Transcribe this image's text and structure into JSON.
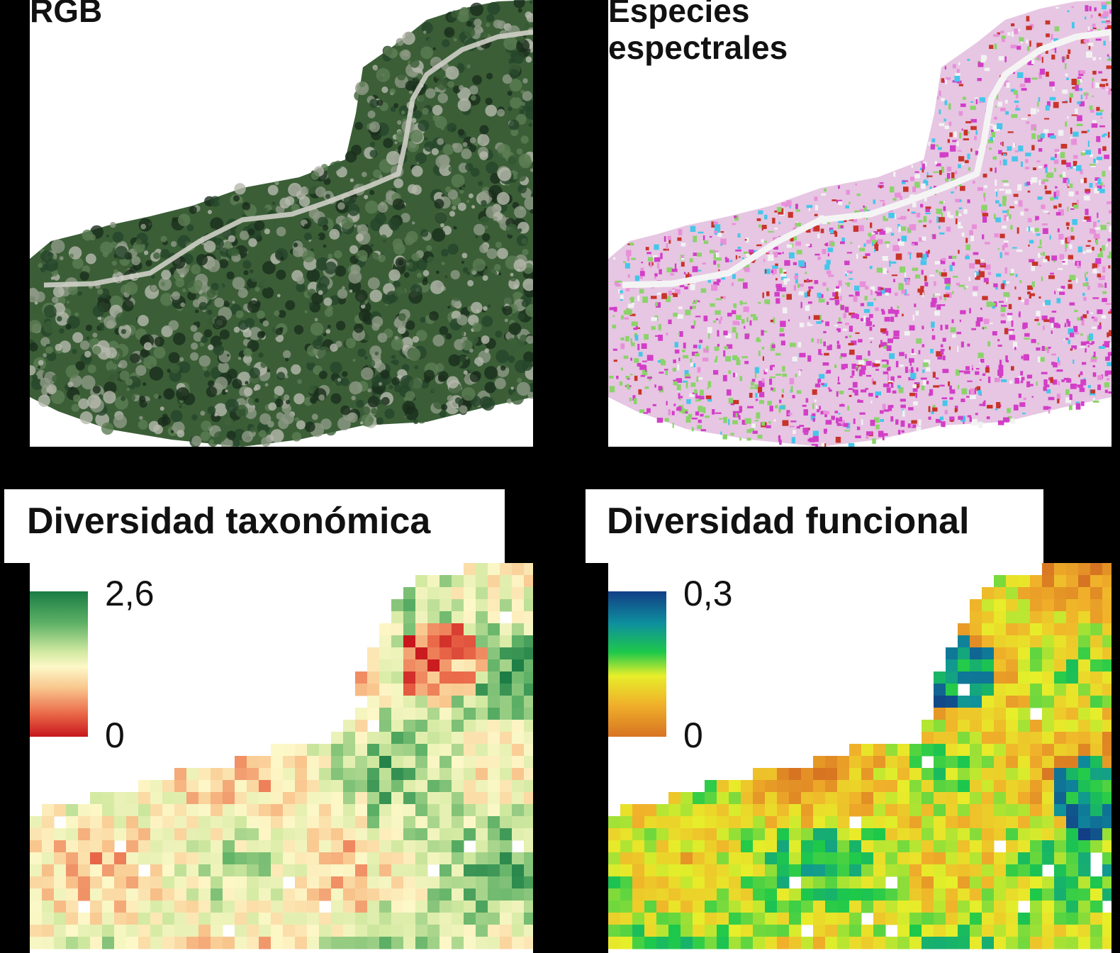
{
  "panels": {
    "rgb": {
      "title": "RGB"
    },
    "spectral": {
      "title_line1": "Especies",
      "title_line2": "espectrales"
    },
    "taxonomic": {
      "title": "Diversidad taxonómica",
      "legend_max": "2,6",
      "legend_min": "0"
    },
    "functional": {
      "title": "Diversidad funcional",
      "legend_max": "0,3",
      "legend_min": "0"
    }
  },
  "colors": {
    "taxonomic_ramp": [
      "#c8161d",
      "#ea6a49",
      "#f9c88f",
      "#fdf8c8",
      "#d4eaa2",
      "#5eb166",
      "#1a7c45"
    ],
    "functional_ramp": [
      "#d77422",
      "#f0b02a",
      "#e7ee2a",
      "#1ec94a",
      "#0e8f9e",
      "#123e86"
    ],
    "spectral_classes": [
      "#d23ec7",
      "#e88fda",
      "#45c6ea",
      "#8bd36a",
      "#c8342a",
      "#f2f2f2"
    ],
    "rgb_palette": [
      "#25452a",
      "#3b5e37",
      "#5c7d54",
      "#8f9a86",
      "#b7b9ad",
      "#1a2d1c"
    ]
  }
}
